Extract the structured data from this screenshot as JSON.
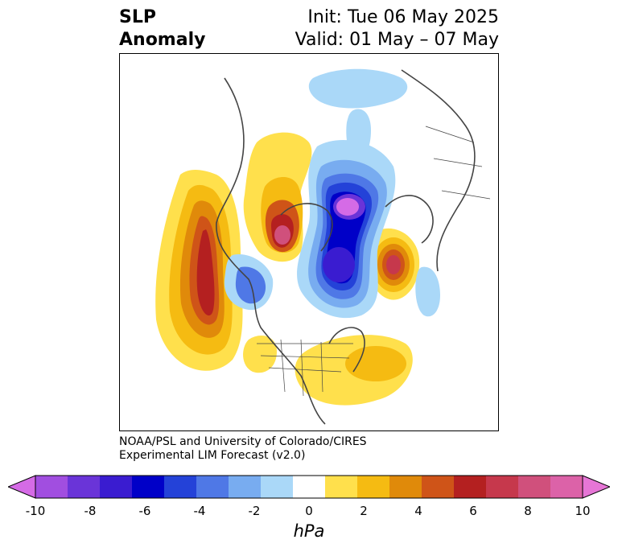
{
  "title": {
    "left_line1": "SLP",
    "left_line2": "Anomaly",
    "right_line1": "Init: Tue 06 May 2025",
    "right_line2": "Valid: 01 May – 07 May"
  },
  "credit": {
    "line1": "NOAA/PSL and University of Colorado/CIRES",
    "line2": "Experimental LIM Forecast (v2.0)"
  },
  "colorbar": {
    "units": "hPa",
    "tick_labels": [
      "-10",
      "-8",
      "-6",
      "-4",
      "-2",
      "0",
      "2",
      "4",
      "6",
      "8",
      "10"
    ],
    "colors": [
      "#d56be6",
      "#a14ee0",
      "#6a34d8",
      "#3a1cd0",
      "#0000c8",
      "#2442d8",
      "#4f78e6",
      "#78acf0",
      "#aad8f8",
      "#ffffff",
      "#ffe04c",
      "#f5bb12",
      "#e08a0a",
      "#cf5418",
      "#b42020",
      "#c6384c",
      "#d0507c",
      "#dc62a8",
      "#e676d6"
    ]
  },
  "map": {
    "projection": "north-polar stereographic",
    "field": "SLP anomaly"
  }
}
